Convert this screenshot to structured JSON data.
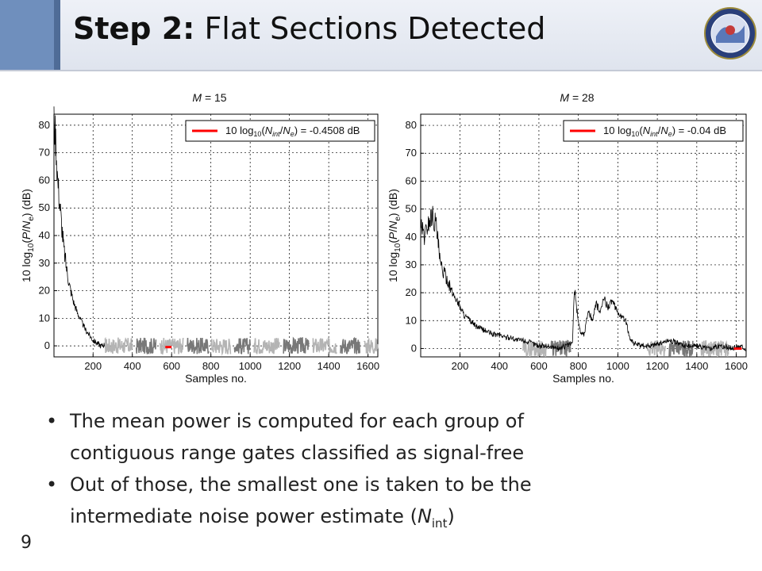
{
  "slide": {
    "title_bold": "Step 2:",
    "title_rest": " Flat Sections Detected",
    "page_number": "9"
  },
  "bullets": [
    {
      "line1": "The mean power is computed for each group of",
      "line2": "contiguous range gates classified as signal-free"
    },
    {
      "line1": "Out of those, the smallest one is taken to be the",
      "line2_pre": "intermediate noise power estimate (",
      "line2_var": "N",
      "line2_sub": "int",
      "line2_post": ")"
    }
  ],
  "colors": {
    "header_accent": "#6f8fbd",
    "noise_line": "#ff0000",
    "signal_trace": "#000000",
    "flat_light": "#b4b4b4",
    "flat_dark": "#787878"
  },
  "chart_data": [
    {
      "type": "line",
      "title_prefix": "M",
      "title_suffix": " = 15",
      "xlabel": "Samples no.",
      "ylabel": "10 log10(P/Ne) (dB)",
      "xlim": [
        1,
        1650
      ],
      "ylim": [
        -4,
        84
      ],
      "xticks": [
        200,
        400,
        600,
        800,
        1000,
        1200,
        1400,
        1600
      ],
      "yticks": [
        0,
        10,
        20,
        30,
        40,
        50,
        60,
        70,
        80
      ],
      "grid": true,
      "legend_position": "top-right",
      "legend_label": "10 log10(Nint/Ne) = -0.4508 dB",
      "series": [
        {
          "role": "signal",
          "points": [
            [
              1,
              82
            ],
            [
              10,
              75
            ],
            [
              20,
              60
            ],
            [
              35,
              48
            ],
            [
              50,
              36
            ],
            [
              65,
              28
            ],
            [
              80,
              22
            ],
            [
              100,
              16
            ],
            [
              120,
              12
            ],
            [
              140,
              9
            ],
            [
              160,
              6
            ],
            [
              180,
              4
            ],
            [
              200,
              2
            ],
            [
              220,
              1
            ],
            [
              240,
              0
            ],
            [
              260,
              0.5
            ]
          ]
        },
        {
          "role": "flat-sections",
          "segments": [
            [
              260,
              400
            ],
            [
              420,
              520
            ],
            [
              540,
              660
            ],
            [
              680,
              790
            ],
            [
              800,
              900
            ],
            [
              920,
              1000
            ],
            [
              1020,
              1150
            ],
            [
              1170,
              1300
            ],
            [
              1320,
              1440
            ],
            [
              1460,
              1560
            ],
            [
              1580,
              1650
            ]
          ],
          "level": 0
        },
        {
          "role": "intermediate-noise-estimate",
          "x": [
            568,
            600
          ],
          "y": -0.45
        }
      ]
    },
    {
      "type": "line",
      "title_prefix": "M",
      "title_suffix": " = 28",
      "xlabel": "Samples no.",
      "ylabel": "10 log10(P/Ne) (dB)",
      "xlim": [
        1,
        1650
      ],
      "ylim": [
        -3,
        84
      ],
      "xticks": [
        200,
        400,
        600,
        800,
        1000,
        1200,
        1400,
        1600
      ],
      "yticks": [
        0,
        10,
        20,
        30,
        40,
        50,
        60,
        70,
        80
      ],
      "grid": true,
      "legend_position": "top-right",
      "legend_label": "10 log10(Nint/Ne) = -0.04 dB",
      "series": [
        {
          "role": "signal",
          "points": [
            [
              1,
              44
            ],
            [
              20,
              40
            ],
            [
              40,
              45
            ],
            [
              60,
              48
            ],
            [
              80,
              44
            ],
            [
              100,
              30
            ],
            [
              120,
              27
            ],
            [
              140,
              24
            ],
            [
              160,
              20
            ],
            [
              180,
              18
            ],
            [
              200,
              15
            ],
            [
              220,
              12
            ],
            [
              250,
              10
            ],
            [
              280,
              8
            ],
            [
              310,
              7
            ],
            [
              340,
              6
            ],
            [
              370,
              5
            ],
            [
              400,
              5
            ],
            [
              430,
              4
            ],
            [
              460,
              4
            ],
            [
              490,
              3
            ],
            [
              520,
              3
            ],
            [
              560,
              2
            ],
            [
              600,
              1
            ],
            [
              640,
              1
            ],
            [
              700,
              0
            ],
            [
              740,
              1
            ],
            [
              770,
              2
            ],
            [
              780,
              22
            ],
            [
              790,
              15
            ],
            [
              800,
              10
            ],
            [
              810,
              6
            ],
            [
              830,
              5
            ],
            [
              850,
              14
            ],
            [
              870,
              10
            ],
            [
              890,
              16
            ],
            [
              910,
              13
            ],
            [
              930,
              18
            ],
            [
              950,
              15
            ],
            [
              970,
              17
            ],
            [
              990,
              14
            ],
            [
              1010,
              12
            ],
            [
              1040,
              10
            ],
            [
              1060,
              4
            ],
            [
              1080,
              2
            ],
            [
              1110,
              1
            ],
            [
              1160,
              1
            ],
            [
              1220,
              2
            ],
            [
              1260,
              3
            ],
            [
              1300,
              2
            ],
            [
              1340,
              1
            ],
            [
              1400,
              1
            ],
            [
              1460,
              0
            ],
            [
              1520,
              1
            ],
            [
              1580,
              0
            ],
            [
              1620,
              1
            ],
            [
              1650,
              0
            ]
          ]
        },
        {
          "role": "flat-sections",
          "segments": [
            [
              520,
              640
            ],
            [
              660,
              760
            ],
            [
              1150,
              1240
            ],
            [
              1260,
              1380
            ],
            [
              1420,
              1560
            ]
          ],
          "level": 0
        },
        {
          "role": "intermediate-noise-estimate",
          "x": [
            1588,
            1628
          ],
          "y": -0.04
        }
      ]
    }
  ]
}
